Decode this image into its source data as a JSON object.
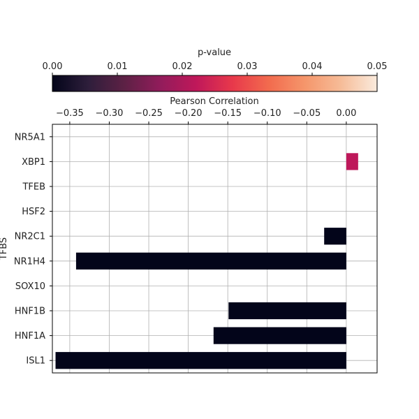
{
  "chart_data": {
    "type": "bar",
    "orientation": "horizontal",
    "xlabel": "Pearson Correlation",
    "ylabel": "TFBS",
    "xlim": [
      -0.372,
      0.039
    ],
    "xticks": [
      -0.35,
      -0.3,
      -0.25,
      -0.2,
      -0.15,
      -0.1,
      -0.05,
      0.0
    ],
    "xtick_labels": [
      "−0.35",
      "−0.30",
      "−0.25",
      "−0.20",
      "−0.15",
      "−0.10",
      "−0.05",
      "0.00"
    ],
    "categories": [
      "NR5A1",
      "XBP1",
      "TFEB",
      "HSF2",
      "NR2C1",
      "NR1H4",
      "SOX10",
      "HNF1B",
      "HNF1A",
      "ISL1"
    ],
    "values": [
      0.0,
      0.015,
      0.0,
      0.0,
      -0.028,
      -0.342,
      0.0,
      -0.149,
      -0.168,
      -0.368
    ],
    "p_values": [
      null,
      0.022,
      null,
      null,
      0.0,
      0.0,
      null,
      0.0,
      0.0,
      0.0
    ],
    "grid": true,
    "colorbar": {
      "label": "p-value",
      "range": [
        0.0,
        0.05
      ],
      "ticks": [
        0.0,
        0.01,
        0.02,
        0.03,
        0.04,
        0.05
      ],
      "tick_labels": [
        "0.00",
        "0.01",
        "0.02",
        "0.03",
        "0.04",
        "0.05"
      ],
      "colormap": "rocket",
      "placement": "top"
    },
    "colormap_stops": [
      "#03051a",
      "#2e1e3b",
      "#5d2145",
      "#921c5b",
      "#c0185a",
      "#e8394b",
      "#f26b4e",
      "#f5966b",
      "#f6bc98",
      "#faebdd"
    ]
  }
}
